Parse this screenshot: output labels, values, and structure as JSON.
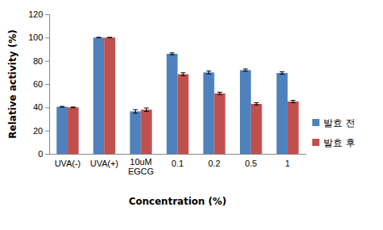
{
  "chart_data": {
    "type": "bar",
    "x_label": "Concentration (%)",
    "y_label": "Relative activity (%)",
    "categories": [
      "UVA(-)",
      "UVA(+)",
      "10uM EGCG",
      "0.1",
      "0.2",
      "0.5",
      "1"
    ],
    "series": [
      {
        "name": "발효 전",
        "color": "#4f81bd",
        "values": [
          40.5,
          100,
          36.5,
          86,
          70,
          72,
          69.5
        ],
        "errors": [
          0.3,
          0.2,
          1.5,
          0.8,
          1.2,
          1.0,
          1.0
        ]
      },
      {
        "name": "발효 후",
        "color": "#c0504d",
        "values": [
          40,
          100,
          38,
          68.5,
          52,
          43,
          45
        ],
        "errors": [
          0.3,
          0.2,
          1.5,
          1.2,
          1.0,
          1.0,
          1.0
        ]
      }
    ],
    "ylim": [
      0,
      120
    ],
    "yticks": [
      0,
      20,
      40,
      60,
      80,
      100,
      120
    ],
    "grid": false,
    "legend": "right"
  }
}
